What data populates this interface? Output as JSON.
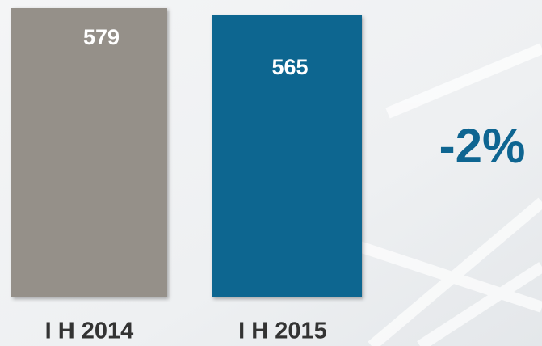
{
  "chart_data": {
    "type": "bar",
    "categories": [
      "I H 2014",
      "I H 2015"
    ],
    "series": [
      {
        "name": null,
        "values": [
          579,
          565
        ]
      }
    ],
    "colors": [
      "#959089",
      "#0b6690"
    ],
    "annotation": "-2%"
  }
}
